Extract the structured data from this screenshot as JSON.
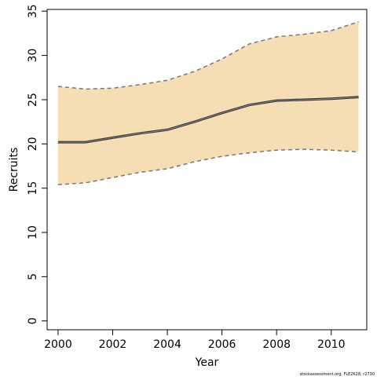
{
  "chart_data": {
    "type": "line",
    "title": "",
    "xlabel": "Year",
    "ylabel": "Recruits",
    "xlim": [
      1999.6,
      2011.3
    ],
    "ylim": [
      -1,
      35.2
    ],
    "xticks": [
      2000,
      2002,
      2004,
      2006,
      2008,
      2010
    ],
    "yticks": [
      0,
      5,
      10,
      15,
      20,
      25,
      30,
      35
    ],
    "grid": false,
    "legend": "none",
    "x": [
      2000,
      2001,
      2002,
      2003,
      2004,
      2005,
      2006,
      2007,
      2008,
      2009,
      2010,
      2011
    ],
    "series": [
      {
        "role": "estimate",
        "values": [
          20.2,
          20.2,
          20.7,
          21.2,
          21.6,
          22.5,
          23.5,
          24.4,
          24.9,
          25.0,
          25.1,
          25.3
        ]
      },
      {
        "role": "upper-bound",
        "values": [
          26.5,
          26.2,
          26.3,
          26.7,
          27.2,
          28.2,
          29.6,
          31.3,
          32.1,
          32.4,
          32.8,
          33.8
        ]
      },
      {
        "role": "lower-bound",
        "values": [
          15.4,
          15.6,
          16.2,
          16.8,
          17.2,
          18.0,
          18.6,
          19.0,
          19.3,
          19.4,
          19.3,
          19.1
        ]
      }
    ],
    "colors": {
      "band_fill": "#f5deb3",
      "estimate_line": "#333333",
      "bound_line": "#777777",
      "axis": "#000000"
    }
  },
  "footer": {
    "note": "stockassessment.org, FLE2628, r2730"
  }
}
